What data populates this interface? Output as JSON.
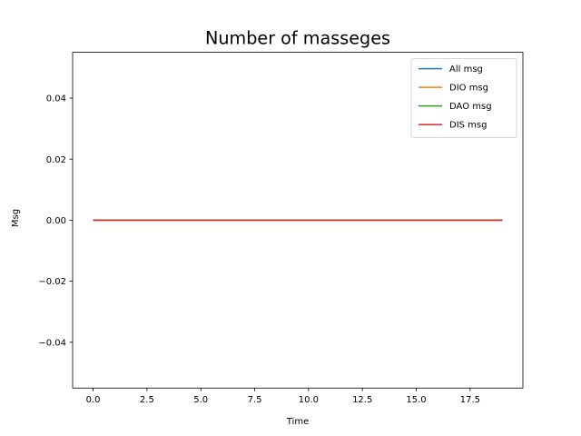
{
  "chart_data": {
    "type": "line",
    "title": "Number of masseges",
    "xlabel": "Time",
    "ylabel": "Msg",
    "xlim": [
      -0.95,
      19.95
    ],
    "ylim": [
      -0.055,
      0.055
    ],
    "x_ticks": [
      0.0,
      2.5,
      5.0,
      7.5,
      10.0,
      12.5,
      15.0,
      17.5
    ],
    "x_tick_labels": [
      "0.0",
      "2.5",
      "5.0",
      "7.5",
      "10.0",
      "12.5",
      "15.0",
      "17.5"
    ],
    "y_ticks": [
      -0.04,
      -0.02,
      0.0,
      0.02,
      0.04
    ],
    "y_tick_labels": [
      "−0.04",
      "−0.02",
      "0.00",
      "0.02",
      "0.04"
    ],
    "grid": false,
    "legend_position": "top-right",
    "x": [
      0,
      1,
      2,
      3,
      4,
      5,
      6,
      7,
      8,
      9,
      10,
      11,
      12,
      13,
      14,
      15,
      16,
      17,
      18,
      19
    ],
    "series": [
      {
        "name": "All msg",
        "color": "#1f77b4",
        "values": [
          0,
          0,
          0,
          0,
          0,
          0,
          0,
          0,
          0,
          0,
          0,
          0,
          0,
          0,
          0,
          0,
          0,
          0,
          0,
          0
        ]
      },
      {
        "name": "DIO msg",
        "color": "#ff7f0e",
        "values": [
          0,
          0,
          0,
          0,
          0,
          0,
          0,
          0,
          0,
          0,
          0,
          0,
          0,
          0,
          0,
          0,
          0,
          0,
          0,
          0
        ]
      },
      {
        "name": "DAO msg",
        "color": "#2ca02c",
        "values": [
          0,
          0,
          0,
          0,
          0,
          0,
          0,
          0,
          0,
          0,
          0,
          0,
          0,
          0,
          0,
          0,
          0,
          0,
          0,
          0
        ]
      },
      {
        "name": "DIS msg",
        "color": "#d62728",
        "values": [
          0,
          0,
          0,
          0,
          0,
          0,
          0,
          0,
          0,
          0,
          0,
          0,
          0,
          0,
          0,
          0,
          0,
          0,
          0,
          0
        ]
      }
    ]
  }
}
